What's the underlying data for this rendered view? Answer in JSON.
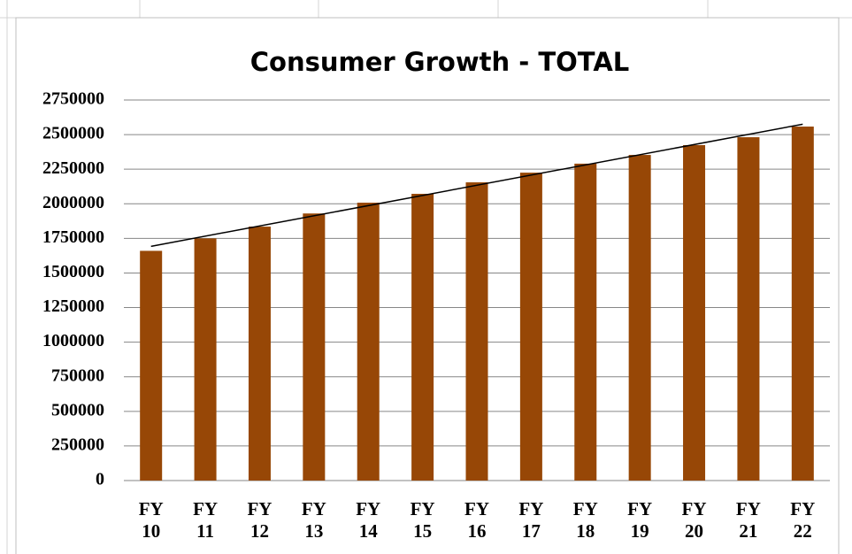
{
  "chart_data": {
    "type": "bar",
    "title": "Consumer Growth - TOTAL",
    "categories": [
      "FY 10",
      "FY 11",
      "FY 12",
      "FY 13",
      "FY 14",
      "FY 15",
      "FY 16",
      "FY 17",
      "FY 18",
      "FY 19",
      "FY 20",
      "FY 21",
      "FY 22"
    ],
    "values": [
      1660000,
      1750000,
      1835000,
      1930000,
      2008000,
      2072000,
      2155000,
      2225000,
      2290000,
      2353000,
      2424000,
      2481000,
      2558000
    ],
    "color": "#974706",
    "ylim": [
      0,
      2750000
    ],
    "yticks": [
      0,
      250000,
      500000,
      750000,
      1000000,
      1250000,
      1500000,
      1750000,
      2000000,
      2250000,
      2500000,
      2750000
    ],
    "grid": true,
    "trendline": true
  }
}
